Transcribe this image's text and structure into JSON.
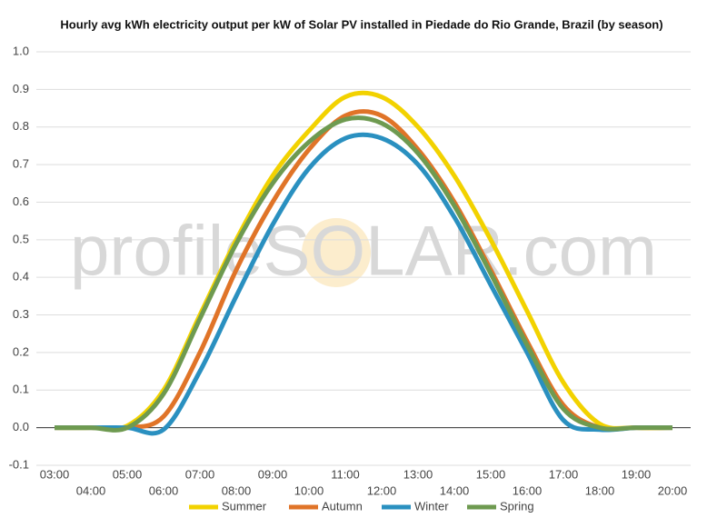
{
  "chart_data": {
    "type": "line",
    "title": "Hourly avg kWh electricity output per kW of Solar PV installed in Piedade do Rio Grande, Brazil (by season)",
    "watermark": "profileSOLAR.com",
    "categories": [
      "03:00",
      "04:00",
      "05:00",
      "06:00",
      "07:00",
      "08:00",
      "09:00",
      "10:00",
      "11:00",
      "12:00",
      "13:00",
      "14:00",
      "15:00",
      "16:00",
      "17:00",
      "18:00",
      "19:00",
      "20:00"
    ],
    "series": [
      {
        "name": "Summer",
        "color": "#f2d200",
        "values": [
          0,
          0,
          0.005,
          0.1,
          0.3,
          0.5,
          0.67,
          0.79,
          0.88,
          0.88,
          0.8,
          0.67,
          0.5,
          0.31,
          0.12,
          0.01,
          0,
          0
        ]
      },
      {
        "name": "Autumn",
        "color": "#e07428",
        "values": [
          0,
          0,
          0,
          0.03,
          0.2,
          0.42,
          0.6,
          0.74,
          0.83,
          0.83,
          0.74,
          0.6,
          0.42,
          0.23,
          0.06,
          0,
          0,
          0
        ]
      },
      {
        "name": "Winter",
        "color": "#2a90c0",
        "values": [
          0,
          0,
          0,
          -0.005,
          0.15,
          0.35,
          0.54,
          0.69,
          0.77,
          0.77,
          0.7,
          0.56,
          0.38,
          0.2,
          0.02,
          -0.005,
          0,
          0
        ]
      },
      {
        "name": "Spring",
        "color": "#6e9a50",
        "values": [
          0,
          0,
          0,
          0.09,
          0.29,
          0.49,
          0.65,
          0.76,
          0.82,
          0.81,
          0.73,
          0.59,
          0.41,
          0.22,
          0.05,
          0,
          0,
          0
        ]
      }
    ],
    "ylim": [
      -0.1,
      1.0
    ],
    "yticks": [
      -0.1,
      {
        "value": 0,
        "label": "0.0"
      },
      0.1,
      0.2,
      0.3,
      0.4,
      0.5,
      0.6,
      0.7,
      0.8,
      0.9,
      {
        "value": 1,
        "label": "1.0"
      }
    ],
    "grid": true
  }
}
